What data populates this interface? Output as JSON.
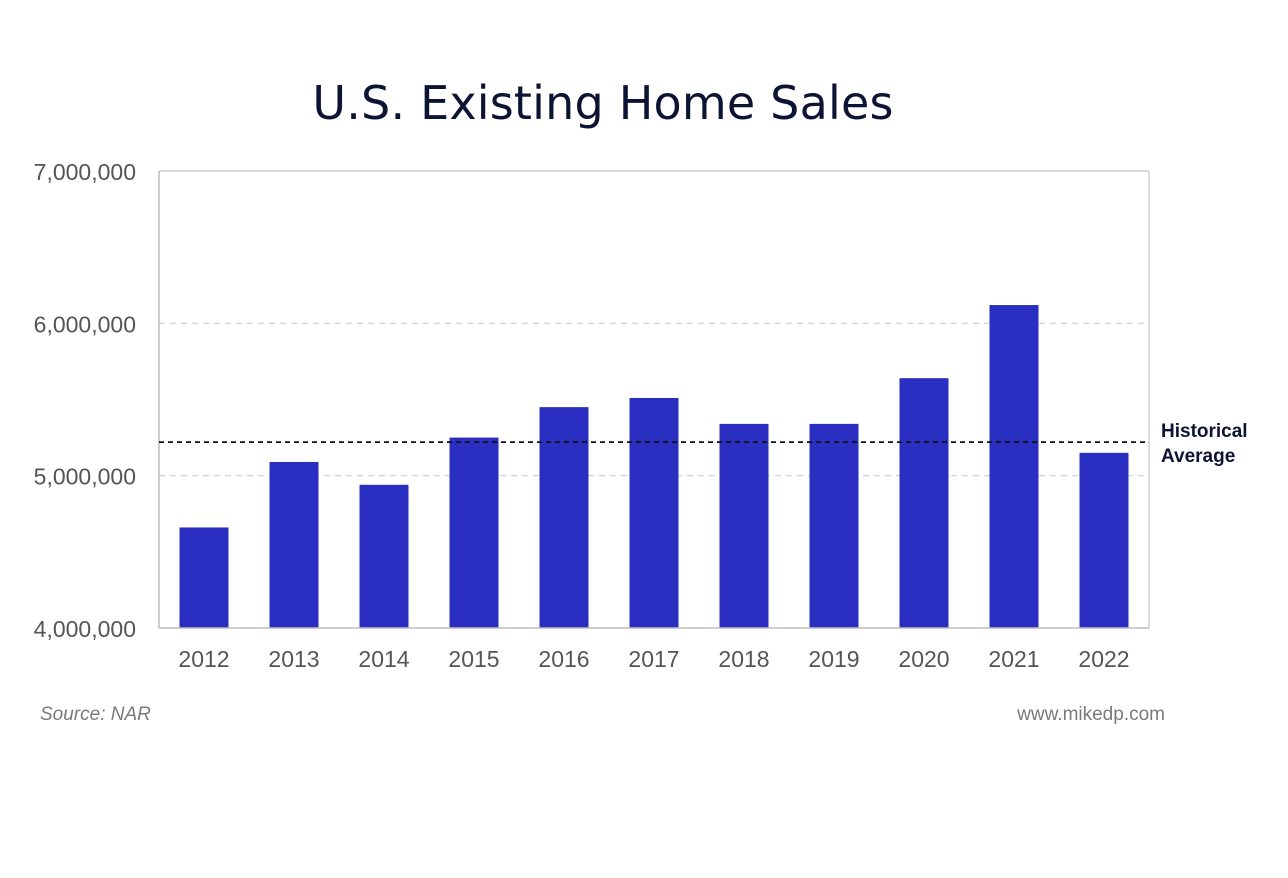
{
  "chart_data": {
    "type": "bar",
    "title": "U.S. Existing Home Sales",
    "categories": [
      "2012",
      "2013",
      "2014",
      "2015",
      "2016",
      "2017",
      "2018",
      "2019",
      "2020",
      "2021",
      "2022"
    ],
    "values": [
      4660000,
      5090000,
      4940000,
      5250000,
      5450000,
      5510000,
      5340000,
      5340000,
      5640000,
      6120000,
      5150000
    ],
    "ylim": [
      4000000,
      7000000
    ],
    "yticks": [
      4000000,
      5000000,
      6000000,
      7000000
    ],
    "ytick_labels": [
      "4,000,000",
      "5,000,000",
      "6,000,000",
      "7,000,000"
    ],
    "xlabel": "",
    "ylabel": "",
    "grid": true,
    "reference_line": {
      "value": 5220000,
      "label_line1": "Historical",
      "label_line2": "Average",
      "style": "dashed"
    },
    "colors": {
      "bar": "#2a2fc1",
      "grid": "#d0d0d0",
      "reference": "#111111",
      "text": "#555555"
    }
  },
  "footer": {
    "source": "Source: NAR",
    "website": "www.mikedp.com"
  }
}
